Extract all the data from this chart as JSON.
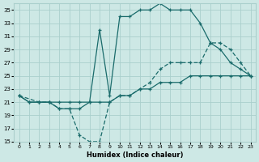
{
  "xlabel": "Humidex (Indice chaleur)",
  "bg_color": "#cde8e5",
  "grid_color": "#aacfcc",
  "line_color": "#1a6b6b",
  "xlim": [
    -0.5,
    23.5
  ],
  "ylim": [
    15,
    36
  ],
  "yticks": [
    15,
    17,
    19,
    21,
    23,
    25,
    27,
    29,
    31,
    33,
    35
  ],
  "xticks": [
    0,
    1,
    2,
    3,
    4,
    5,
    6,
    7,
    8,
    9,
    10,
    11,
    12,
    13,
    14,
    15,
    16,
    17,
    18,
    19,
    20,
    21,
    22,
    23
  ],
  "line1_x": [
    0,
    1,
    2,
    3,
    4,
    5,
    6,
    7,
    8,
    9,
    10,
    11,
    12,
    13,
    14,
    15,
    16,
    17,
    18,
    19,
    20,
    21,
    22,
    23
  ],
  "line1_y": [
    22,
    21,
    21,
    21,
    20,
    20,
    20,
    21,
    32,
    22,
    34,
    34,
    35,
    35,
    36,
    35,
    35,
    35,
    33,
    30,
    29,
    27,
    26,
    25
  ],
  "line2_x": [
    0,
    2,
    3,
    4,
    5,
    6,
    7,
    8,
    9,
    10,
    11,
    12,
    13,
    14,
    15,
    16,
    17,
    18,
    19,
    20,
    21,
    22,
    23
  ],
  "line2_y": [
    22,
    21,
    21,
    20,
    20,
    16,
    15,
    15,
    21,
    22,
    22,
    23,
    24,
    26,
    27,
    27,
    27,
    27,
    30,
    30,
    29,
    27,
    25
  ],
  "line3_x": [
    0,
    1,
    2,
    3,
    4,
    5,
    6,
    7,
    8,
    9,
    10,
    11,
    12,
    13,
    14,
    15,
    16,
    17,
    18,
    19,
    20,
    21,
    22,
    23
  ],
  "line3_y": [
    22,
    21,
    21,
    21,
    21,
    21,
    21,
    21,
    21,
    21,
    22,
    22,
    23,
    23,
    24,
    24,
    24,
    25,
    25,
    25,
    25,
    25,
    25,
    25
  ]
}
